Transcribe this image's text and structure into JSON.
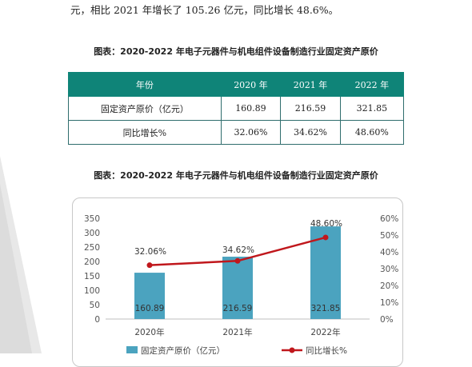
{
  "intro_text": "元，相比 2021 年增长了 105.26 亿元，同比增长 48.6%。",
  "table": {
    "caption": "图表：2020-2022 年电子元器件与机电组件设备制造行业固定资产原价",
    "headers": [
      "年份",
      "2020 年",
      "2021 年",
      "2022 年"
    ],
    "rows": [
      [
        "固定资产原价（亿元）",
        "160.89",
        "216.59",
        "321.85"
      ],
      [
        "同比增长%",
        "32.06%",
        "34.62%",
        "48.60%"
      ]
    ]
  },
  "chart_caption": "图表：2020-2022 年电子元器件与机电组件设备制造行业固定资产原价",
  "colors": {
    "header_teal": "#0f8478",
    "bar": "#4ba3bf",
    "line": "#c0171c"
  },
  "chart_data": {
    "type": "bar",
    "categories": [
      "2020年",
      "2021年",
      "2022年"
    ],
    "series": [
      {
        "name": "固定资产原价（亿元）",
        "type": "bar",
        "axis": "left",
        "values": [
          160.89,
          216.59,
          321.85
        ],
        "labels": [
          "160.89",
          "216.59",
          "321.85"
        ]
      },
      {
        "name": "同比增长%",
        "type": "line",
        "axis": "right",
        "values": [
          32.06,
          34.62,
          48.6
        ],
        "labels": [
          "32.06%",
          "34.62%",
          "48.60%"
        ]
      }
    ],
    "y_left": {
      "min": 0,
      "max": 350,
      "ticks": [
        "0",
        "50",
        "100",
        "150",
        "200",
        "250",
        "300",
        "350"
      ]
    },
    "y_right": {
      "min": 0,
      "max": 60,
      "ticks": [
        "0%",
        "10%",
        "20%",
        "30%",
        "40%",
        "50%",
        "60%"
      ]
    },
    "grid": false,
    "legend_position": "bottom"
  }
}
